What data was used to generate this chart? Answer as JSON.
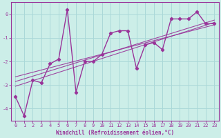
{
  "xlabel": "Windchill (Refroidissement éolien,°C)",
  "bg_color": "#cceee8",
  "line_color": "#993399",
  "grid_color": "#aad8d8",
  "x_data": [
    0,
    1,
    2,
    3,
    4,
    5,
    6,
    7,
    8,
    9,
    10,
    11,
    12,
    13,
    14,
    15,
    16,
    17,
    18,
    19,
    20,
    21,
    22,
    23
  ],
  "y_data": [
    -3.5,
    -4.3,
    -2.8,
    -2.9,
    -2.1,
    -1.9,
    0.2,
    -3.3,
    -2.0,
    -2.0,
    -1.7,
    -0.8,
    -0.7,
    -0.7,
    -2.3,
    -1.3,
    -1.2,
    -1.5,
    -0.2,
    -0.2,
    -0.2,
    0.1,
    -0.4,
    -0.4
  ],
  "ylim": [
    -4.5,
    0.5
  ],
  "xlim": [
    -0.5,
    23.5
  ],
  "yticks": [
    0,
    -1,
    -2,
    -3,
    -4
  ],
  "xticks": [
    0,
    1,
    2,
    3,
    4,
    5,
    6,
    7,
    8,
    9,
    10,
    11,
    12,
    13,
    14,
    15,
    16,
    17,
    18,
    19,
    20,
    21,
    22,
    23
  ],
  "xtick_labels": [
    "0",
    "1",
    "2",
    "3",
    "4",
    "5",
    "6",
    "7",
    "8",
    "9",
    "10",
    "11",
    "12",
    "13",
    "14",
    "15",
    "16",
    "17",
    "18",
    "19",
    "20",
    "21",
    "22",
    "23"
  ],
  "trend_lines": [
    {
      "x": [
        0,
        23
      ],
      "y": [
        -2.85,
        -0.25
      ]
    },
    {
      "x": [
        0,
        23
      ],
      "y": [
        -3.05,
        -0.35
      ]
    },
    {
      "x": [
        0,
        23
      ],
      "y": [
        -2.65,
        -0.45
      ]
    }
  ]
}
